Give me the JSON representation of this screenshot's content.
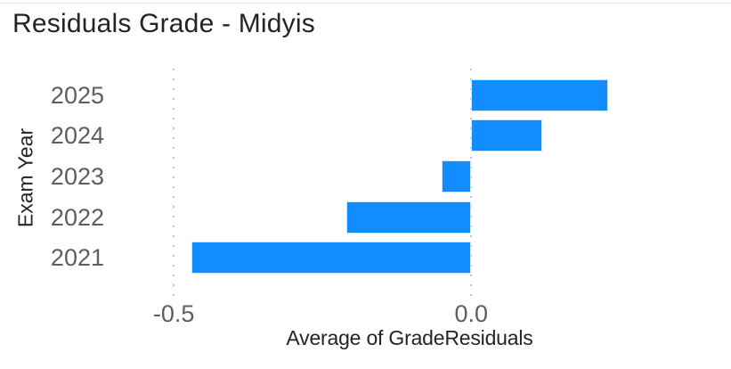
{
  "header": {
    "title": "Residuals Grade - Midyis"
  },
  "chart_data": {
    "type": "bar",
    "orientation": "horizontal",
    "title": "Residuals Grade - Midyis",
    "categories": [
      "2025",
      "2024",
      "2023",
      "2022",
      "2021"
    ],
    "values": [
      0.23,
      0.12,
      -0.05,
      -0.21,
      -0.47
    ],
    "series": [
      {
        "name": "Average of GradeResiduals",
        "values": [
          0.23,
          0.12,
          -0.05,
          -0.21,
          -0.47
        ]
      }
    ],
    "xlabel": "Average of GradeResiduals",
    "ylabel": "Exam Year",
    "xlim": [
      -0.59,
      0.42
    ],
    "x_ticks": [
      {
        "value": -0.5,
        "label": "-0.5"
      },
      {
        "value": 0.0,
        "label": "0.0"
      }
    ],
    "grid": "dotted-vertical-gridlines",
    "legend": "none",
    "bar_color": "#118DFF"
  },
  "colors": {
    "bar": "#118DFF",
    "title_text": "#252423",
    "axis_tick_text": "#605E5C",
    "axis_title_text": "#252423",
    "gridline": "#C6C4C2",
    "background": "#FFFFFF",
    "top_divider": "#E4E4E4"
  }
}
